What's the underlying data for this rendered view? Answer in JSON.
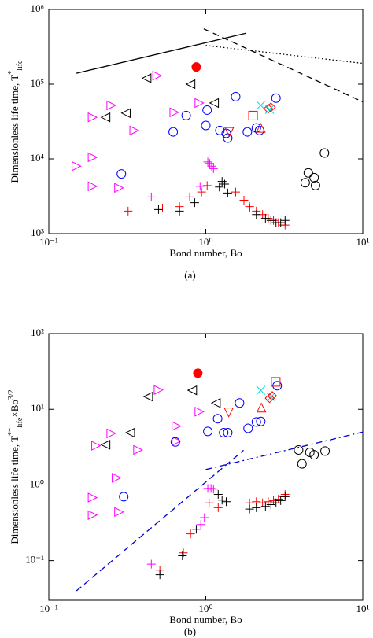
{
  "chart_data": [
    {
      "type": "scatter",
      "caption": "(a)",
      "xlabel": "Bond number, Bo",
      "ylabel": [
        {
          "text": "Dimensionless life time, T"
        },
        {
          "sup": "*"
        },
        {
          "sub": "life"
        }
      ],
      "xscale": "log",
      "yscale": "log",
      "xlim": [
        0.1,
        10
      ],
      "ylim": [
        1000,
        1000000
      ],
      "xticks": [
        {
          "value": 0.1,
          "label": "10⁻¹"
        },
        {
          "value": 1,
          "label": "10⁰"
        },
        {
          "value": 10,
          "label": "10¹"
        }
      ],
      "yticks": [
        {
          "value": 1000,
          "label": "10³"
        },
        {
          "value": 10000,
          "label": "10⁴"
        },
        {
          "value": 100000,
          "label": "10⁵"
        },
        {
          "value": 1000000,
          "label": "10⁶"
        }
      ],
      "series": [
        {
          "marker": "filled-circle",
          "color": "#ff0000",
          "x": [
            0.87
          ],
          "y": [
            170000
          ]
        },
        {
          "marker": "triangle-left",
          "color": "#000000",
          "x": [
            0.42,
            0.8,
            1.13,
            0.31,
            0.23
          ],
          "y": [
            120000,
            100000,
            56000,
            41000,
            36000
          ]
        },
        {
          "marker": "triangle-right",
          "color": "#ff00ff",
          "x": [
            0.49,
            0.25,
            0.19,
            0.91,
            0.35,
            0.63,
            0.15,
            0.19,
            0.28,
            0.19
          ],
          "y": [
            130000,
            52000,
            36000,
            56000,
            24000,
            42000,
            8000,
            10500,
            4100,
            4300
          ]
        },
        {
          "marker": "circle",
          "color": "#0000ff",
          "x": [
            1.55,
            1.02,
            0.62,
            0.75,
            1.0,
            1.23,
            1.35,
            1.38,
            1.84,
            2.1,
            2.8,
            0.29,
            2.2
          ],
          "y": [
            68000,
            45000,
            23000,
            38000,
            28000,
            24000,
            22000,
            19000,
            23000,
            26000,
            65000,
            6300,
            24000
          ]
        },
        {
          "marker": "triangle-down",
          "color": "#ff0000",
          "x": [
            1.41
          ],
          "y": [
            23000
          ]
        },
        {
          "marker": "square",
          "color": "#ff0000",
          "x": [
            2.0
          ],
          "y": [
            38000
          ]
        },
        {
          "marker": "triangle-up",
          "color": "#ff0000",
          "x": [
            2.24
          ],
          "y": [
            26000
          ]
        },
        {
          "marker": "diamond",
          "color": "#ff0000",
          "x": [
            2.5,
            2.6
          ],
          "y": [
            47000,
            49000
          ]
        },
        {
          "marker": "x",
          "color": "#00e0e0",
          "x": [
            2.24,
            2.55
          ],
          "y": [
            52000,
            46000
          ]
        },
        {
          "marker": "circle",
          "color": "#000000",
          "x": [
            5.7,
            4.3,
            4.5,
            4.9,
            5.0
          ],
          "y": [
            12000,
            4800,
            6500,
            5600,
            4400
          ]
        },
        {
          "marker": "plus",
          "color": "#ff0000",
          "x": [
            0.32,
            0.53,
            0.68,
            0.79,
            0.94,
            1.02,
            1.55,
            1.75,
            1.9,
            2.1,
            2.3,
            2.5,
            2.7,
            2.9,
            3.1,
            3.2
          ],
          "y": [
            2000,
            2200,
            2300,
            3100,
            3600,
            4400,
            3600,
            2800,
            2300,
            2000,
            1800,
            1600,
            1500,
            1400,
            1300,
            1300
          ]
        },
        {
          "marker": "plus",
          "color": "#ff00ff",
          "x": [
            0.45,
            1.03,
            1.06,
            1.09,
            1.12,
            0.92
          ],
          "y": [
            3100,
            9100,
            8700,
            8000,
            7400,
            4300
          ]
        },
        {
          "marker": "plus",
          "color": "#000000",
          "x": [
            0.5,
            0.68,
            0.85,
            1.27,
            1.32,
            1.38,
            1.22,
            1.9,
            2.1,
            2.4,
            2.6,
            2.8,
            3.0,
            3.2
          ],
          "y": [
            2100,
            2000,
            2600,
            5000,
            4600,
            3500,
            4200,
            2200,
            1800,
            1600,
            1500,
            1400,
            1400,
            1500
          ]
        },
        {
          "marker": "line",
          "style": "solid",
          "color": "#000000",
          "x": [
            0.15,
            1.8
          ],
          "y": [
            140000,
            480000
          ]
        },
        {
          "marker": "line",
          "style": "dashed",
          "color": "#000000",
          "x": [
            0.97,
            10
          ],
          "y": [
            550000,
            58000
          ]
        },
        {
          "marker": "line",
          "style": "dotted",
          "color": "#000000",
          "x": [
            1,
            10
          ],
          "y": [
            330000,
            190000
          ]
        }
      ]
    },
    {
      "type": "scatter",
      "caption": "(b)",
      "xlabel": "Bond number, Bo",
      "ylabel": [
        {
          "text": "Dimensionless life time, T"
        },
        {
          "sup": "**"
        },
        {
          "sub": "life"
        },
        {
          "text": "×Bo"
        },
        {
          "sup": "3/2"
        }
      ],
      "xscale": "log",
      "yscale": "log",
      "xlim": [
        0.1,
        10
      ],
      "ylim": [
        0.03,
        100
      ],
      "xticks": [
        {
          "value": 0.1,
          "label": "10⁻¹"
        },
        {
          "value": 1,
          "label": "10⁰"
        },
        {
          "value": 10,
          "label": "10¹"
        }
      ],
      "yticks": [
        {
          "value": 0.1,
          "label": "10⁻¹"
        },
        {
          "value": 1,
          "label": "10⁰"
        },
        {
          "value": 10,
          "label": "10¹"
        },
        {
          "value": 100,
          "label": "10²"
        }
      ],
      "series": [
        {
          "marker": "filled-circle",
          "color": "#ff0000",
          "x": [
            0.89
          ],
          "y": [
            30
          ]
        },
        {
          "marker": "triangle-left",
          "color": "#000000",
          "x": [
            0.43,
            0.82,
            1.16,
            0.33,
            0.23
          ],
          "y": [
            14.7,
            17.8,
            12.1,
            4.9,
            3.4
          ]
        },
        {
          "marker": "triangle-right",
          "color": "#ff00ff",
          "x": [
            0.5,
            0.91,
            0.25,
            0.2,
            0.65,
            0.65,
            0.37,
            0.19,
            0.27,
            0.28,
            0.19
          ],
          "y": [
            18,
            9.3,
            4.8,
            3.3,
            6,
            3.8,
            2.9,
            0.68,
            1.24,
            0.44,
            0.4
          ]
        },
        {
          "marker": "circle",
          "color": "#0000ff",
          "x": [
            2.85,
            1.64,
            1.19,
            1.03,
            1.3,
            1.38,
            1.86,
            2.1,
            2.24,
            0.64,
            0.3
          ],
          "y": [
            20.5,
            12.1,
            7.5,
            5.1,
            4.9,
            4.9,
            5.6,
            6.8,
            6.9,
            3.7,
            0.7
          ]
        },
        {
          "marker": "triangle-down",
          "color": "#ff0000",
          "x": [
            1.4
          ],
          "y": [
            9.1
          ]
        },
        {
          "marker": "square",
          "color": "#ff0000",
          "x": [
            2.79
          ],
          "y": [
            23
          ]
        },
        {
          "marker": "x",
          "color": "#00e0e0",
          "x": [
            2.24,
            2.6
          ],
          "y": [
            17.8,
            14.5
          ]
        },
        {
          "marker": "triangle-up",
          "color": "#ff0000",
          "x": [
            2.26
          ],
          "y": [
            10.5
          ]
        },
        {
          "marker": "diamond",
          "color": "#ff0000",
          "x": [
            2.55,
            2.65
          ],
          "y": [
            14,
            15
          ]
        },
        {
          "marker": "circle",
          "color": "#000000",
          "x": [
            5.75,
            4.6,
            4.9,
            3.9,
            4.1
          ],
          "y": [
            2.8,
            2.7,
            2.5,
            2.9,
            1.9
          ]
        },
        {
          "marker": "plus",
          "color": "#ff0000",
          "x": [
            0.51,
            0.72,
            0.8,
            1.05,
            1.2,
            1.9,
            2.1,
            2.3,
            2.5,
            2.7,
            2.9,
            3.1,
            3.2
          ],
          "y": [
            0.075,
            0.127,
            0.226,
            0.58,
            0.5,
            0.58,
            0.6,
            0.58,
            0.6,
            0.62,
            0.65,
            0.7,
            0.75
          ]
        },
        {
          "marker": "plus",
          "color": "#ff00ff",
          "x": [
            0.45,
            0.98,
            1.03,
            1.08,
            1.12,
            0.93
          ],
          "y": [
            0.09,
            0.37,
            0.9,
            0.9,
            0.88,
            0.3
          ]
        },
        {
          "marker": "plus",
          "color": "#000000",
          "x": [
            0.51,
            0.71,
            0.87,
            1.27,
            1.35,
            1.2,
            1.9,
            2.1,
            2.4,
            2.6,
            2.8,
            3.0,
            3.2
          ],
          "y": [
            0.065,
            0.116,
            0.26,
            0.63,
            0.6,
            0.75,
            0.48,
            0.5,
            0.52,
            0.55,
            0.58,
            0.62,
            0.7
          ]
        },
        {
          "marker": "line",
          "style": "dashed",
          "color": "#0000cc",
          "x": [
            0.15,
            1.74
          ],
          "y": [
            0.04,
            2.87
          ]
        },
        {
          "marker": "line",
          "style": "dashdot",
          "color": "#0000cc",
          "x": [
            1,
            10
          ],
          "y": [
            1.6,
            5.0
          ]
        }
      ]
    }
  ]
}
